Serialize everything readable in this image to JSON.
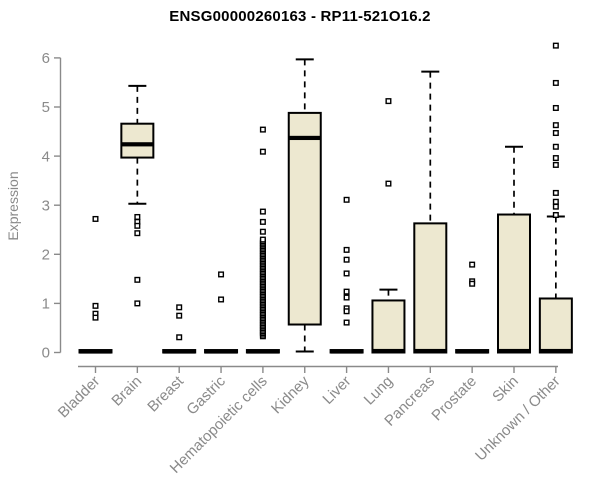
{
  "chart_data": {
    "type": "box",
    "title": "ENSG00000260163 - RP11-521O16.2",
    "ylabel": "Expression",
    "xlabel": "",
    "ylim": [
      0,
      6
    ],
    "yticks": [
      0,
      1,
      2,
      3,
      4,
      5,
      6
    ],
    "grid": false,
    "legend": false,
    "colors": {
      "box_fill": "#EDE8D0",
      "box_line": "#000000",
      "axis": "#8a8a8a",
      "title": "#000000",
      "background": "#ffffff"
    },
    "categories": [
      {
        "label": "Bladder",
        "stats": {
          "whisker_low": 0,
          "q1": 0,
          "median": 0.02,
          "q3": 0.05,
          "whisker_high": 0.05
        },
        "outliers": [
          2.72,
          0.95,
          0.79,
          0.71
        ]
      },
      {
        "label": "Brain",
        "stats": {
          "whisker_low": 3.03,
          "q1": 3.97,
          "median": 4.24,
          "q3": 4.66,
          "whisker_high": 5.43
        },
        "outliers": [
          2.76,
          2.66,
          2.58,
          2.43,
          1.48,
          1.0
        ]
      },
      {
        "label": "Breast",
        "stats": {
          "whisker_low": 0,
          "q1": 0,
          "median": 0.02,
          "q3": 0.05,
          "whisker_high": 0.05
        },
        "outliers": [
          0.92,
          0.75,
          0.31
        ]
      },
      {
        "label": "Gastric",
        "stats": {
          "whisker_low": 0,
          "q1": 0,
          "median": 0.02,
          "q3": 0.05,
          "whisker_high": 0.05
        },
        "outliers": [
          1.59,
          1.08
        ]
      },
      {
        "label": "Hematopoietic cells",
        "stats": {
          "whisker_low": 0,
          "q1": 0,
          "median": 0.02,
          "q3": 0.05,
          "whisker_high": 0.05
        },
        "outliers": [
          4.54,
          4.09,
          2.87,
          2.66,
          2.46
        ],
        "dense_outlier_band": {
          "min": 0.33,
          "max": 2.3,
          "count": 60
        }
      },
      {
        "label": "Kidney",
        "stats": {
          "whisker_low": 0.02,
          "q1": 0.57,
          "median": 4.37,
          "q3": 4.88,
          "whisker_high": 5.97
        },
        "outliers": []
      },
      {
        "label": "Liver",
        "stats": {
          "whisker_low": 0,
          "q1": 0,
          "median": 0.02,
          "q3": 0.05,
          "whisker_high": 0.05
        },
        "outliers": [
          3.11,
          2.09,
          1.89,
          1.61,
          1.24,
          1.12,
          0.9,
          0.84,
          0.61
        ]
      },
      {
        "label": "Lung",
        "stats": {
          "whisker_low": 0,
          "q1": 0,
          "median": 0.03,
          "q3": 1.06,
          "whisker_high": 1.28
        },
        "outliers": [
          5.12,
          3.44
        ]
      },
      {
        "label": "Pancreas",
        "stats": {
          "whisker_low": 0,
          "q1": 0,
          "median": 0.03,
          "q3": 2.63,
          "whisker_high": 5.72
        },
        "outliers": []
      },
      {
        "label": "Prostate",
        "stats": {
          "whisker_low": 0,
          "q1": 0,
          "median": 0.02,
          "q3": 0.05,
          "whisker_high": 0.05
        },
        "outliers": [
          1.79,
          1.45,
          1.4
        ]
      },
      {
        "label": "Skin",
        "stats": {
          "whisker_low": 0,
          "q1": 0,
          "median": 0.03,
          "q3": 2.81,
          "whisker_high": 4.19
        },
        "outliers": []
      },
      {
        "label": "Unknown / Other",
        "stats": {
          "whisker_low": 0,
          "q1": 0,
          "median": 0.03,
          "q3": 1.1,
          "whisker_high": 2.77
        },
        "outliers": [
          6.25,
          5.49,
          4.98,
          4.63,
          4.47,
          4.19,
          3.96,
          3.82,
          3.25,
          3.07,
          2.97,
          2.8
        ]
      }
    ]
  }
}
